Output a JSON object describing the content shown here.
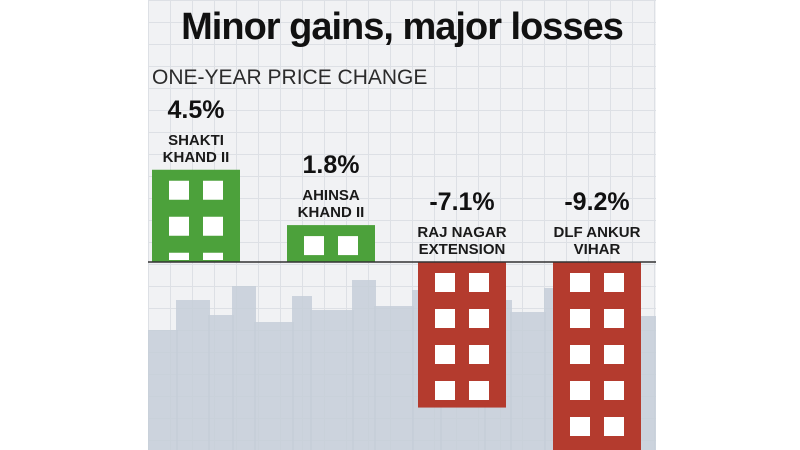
{
  "title": "Minor gains, major losses",
  "subtitle": "ONE-YEAR PRICE CHANGE",
  "colors": {
    "positive": "#4ca13b",
    "negative": "#b43b2e",
    "window": "#ffffff",
    "skyline": "#c6ced8",
    "baseline": "#333333"
  },
  "chart_data": {
    "type": "bar",
    "categories": [
      "SHAKTI KHAND II",
      "AHINSA KHAND II",
      "RAJ NAGAR EXTENSION",
      "DLF ANKUR VIHAR"
    ],
    "category_lines": [
      [
        "SHAKTI",
        "KHAND II"
      ],
      [
        "AHINSA",
        "KHAND II"
      ],
      [
        "RAJ NAGAR",
        "EXTENSION"
      ],
      [
        "DLF ANKUR",
        "VIHAR"
      ]
    ],
    "values": [
      4.5,
      1.8,
      -7.1,
      -9.2
    ],
    "value_labels": [
      "4.5%",
      "1.8%",
      "-7.1%",
      "-9.2%"
    ],
    "unit": "%",
    "grid": true
  }
}
